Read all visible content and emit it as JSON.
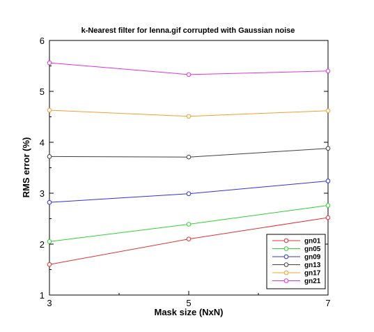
{
  "chart_data": {
    "type": "line",
    "title": "k-Nearest filter for lenna.gif corrupted with Gaussian noise",
    "xlabel": "Mask size (NxN)",
    "ylabel": "RMS error (%)",
    "x": [
      3,
      5,
      7
    ],
    "xlim": [
      3,
      7
    ],
    "ylim": [
      1,
      6
    ],
    "xticks": [
      3,
      5,
      7
    ],
    "yticks": [
      1,
      2,
      3,
      4,
      5,
      6
    ],
    "grid": false,
    "legend_position": "bottom-right",
    "series": [
      {
        "name": "gn01",
        "color": "#e03030",
        "values": [
          1.6,
          2.1,
          2.52
        ]
      },
      {
        "name": "gn05",
        "color": "#30d030",
        "values": [
          2.05,
          2.39,
          2.76
        ]
      },
      {
        "name": "gn09",
        "color": "#3030e0",
        "values": [
          2.82,
          2.99,
          3.24
        ]
      },
      {
        "name": "gn13",
        "color": "#404040",
        "values": [
          3.72,
          3.71,
          3.88
        ]
      },
      {
        "name": "gn17",
        "color": "#f0a030",
        "values": [
          4.63,
          4.51,
          4.62
        ]
      },
      {
        "name": "gn21",
        "color": "#e030e0",
        "values": [
          5.56,
          5.33,
          5.4
        ]
      }
    ]
  }
}
